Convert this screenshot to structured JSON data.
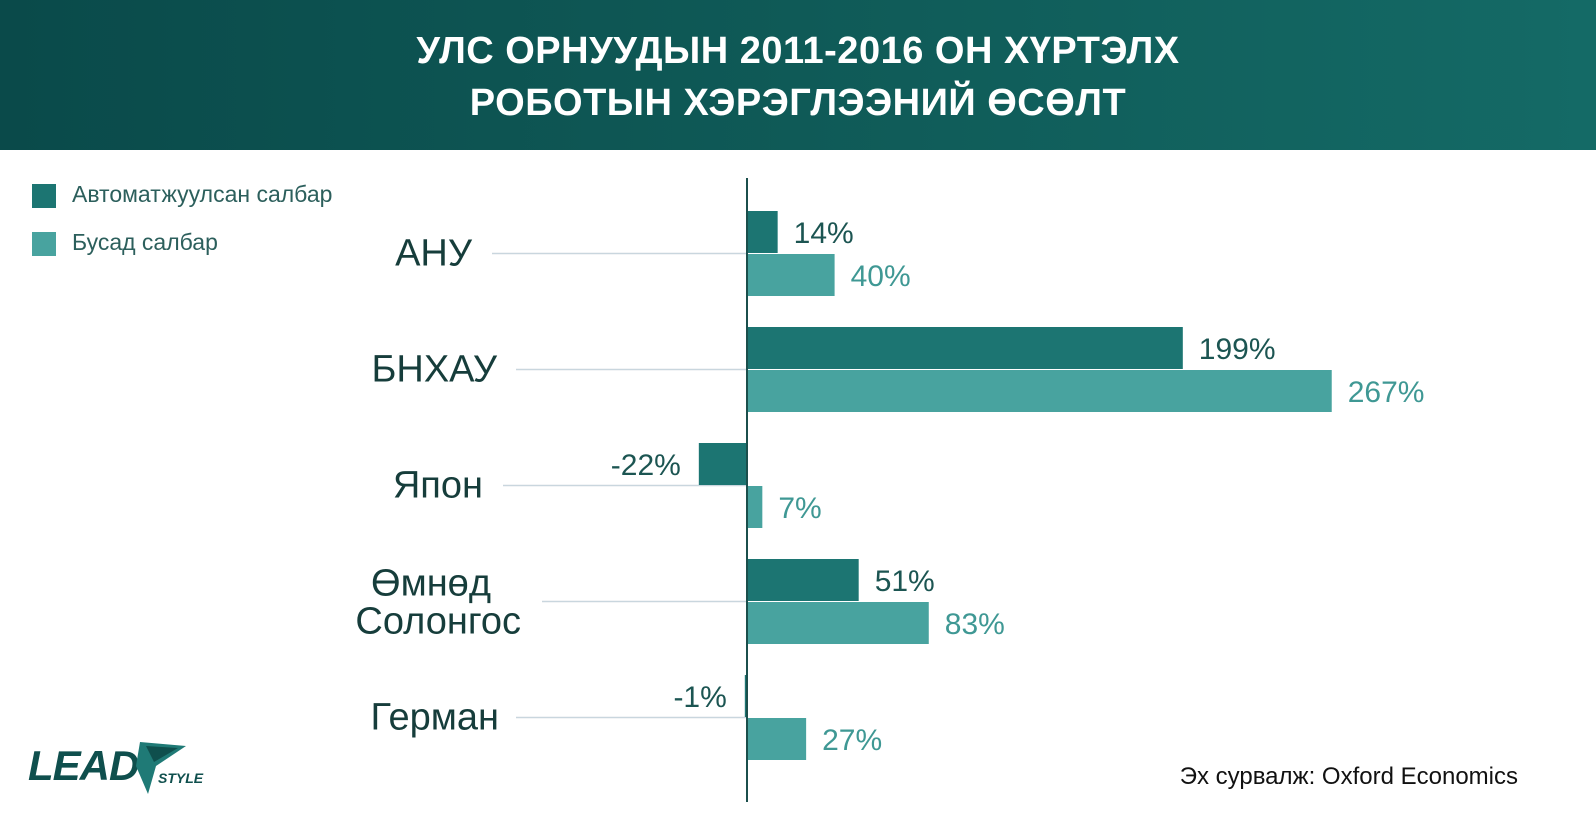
{
  "header": {
    "title_line1": "УЛС ОРНУУДЫН 2011-2016 ОН ХҮРТЭЛХ",
    "title_line2": "РОБОТЫН ХЭРЭГЛЭЭНИЙ ӨСӨЛТ"
  },
  "legend": [
    {
      "label": "Автоматжуулсан салбар",
      "color": "#1c7572"
    },
    {
      "label": "Бусад салбар",
      "color": "#48a39f"
    }
  ],
  "chart_data": {
    "type": "bar",
    "orientation": "horizontal",
    "categories": [
      "АНУ",
      "БНХАУ",
      "Япон",
      "Өмнөд Солонгос",
      "Герман"
    ],
    "category_lines": [
      [
        "АНУ"
      ],
      [
        "БНХАУ"
      ],
      [
        "Япон"
      ],
      [
        "Өмнөд",
        "Солонгос"
      ],
      [
        "Герман"
      ]
    ],
    "series": [
      {
        "name": "Автоматжуулсан салбар",
        "values": [
          14,
          199,
          -22,
          51,
          -1
        ],
        "labels": [
          "14%",
          "199%",
          "-22%",
          "51%",
          "-1%"
        ],
        "color": "#1c7572"
      },
      {
        "name": "Бусад салбар",
        "values": [
          40,
          267,
          7,
          83,
          27
        ],
        "labels": [
          "40%",
          "267%",
          "7%",
          "83%",
          "27%"
        ],
        "color": "#48a39f"
      }
    ],
    "unit": "%",
    "legend_position": "top-left",
    "grid": false
  },
  "source": "Эх сурвалж: Oxford Economics",
  "logo": {
    "text": "LEAD",
    "sub": "STYLE",
    "color": "#0f4f4d",
    "accent": "#1f7a76"
  }
}
